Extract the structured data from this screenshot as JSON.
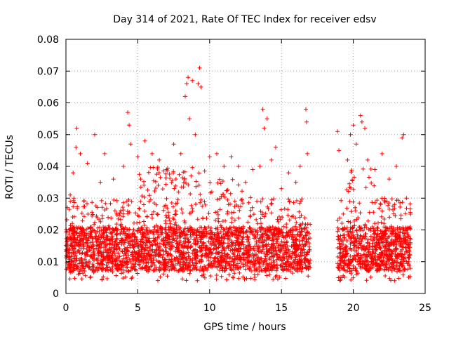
{
  "chart_data": {
    "type": "scatter",
    "title": "Day 314 of 2021, Rate Of TEC Index for receiver edsv",
    "xlabel": "GPS time / hours",
    "ylabel": "ROTI / TECUs",
    "xlim": [
      0,
      25
    ],
    "ylim": [
      0,
      0.08
    ],
    "xticks": [
      "0",
      "5",
      "10",
      "15",
      "20",
      "25"
    ],
    "yticks": [
      "0",
      "0.01",
      "0.02",
      "0.03",
      "0.04",
      "0.05",
      "0.06",
      "0.07",
      "0.08"
    ],
    "grid": true,
    "marker": "+",
    "color": "#ff0000",
    "data_gap_hours": [
      17.0,
      18.9
    ],
    "series": [
      {
        "name": "ROTI",
        "points": [
          [
            0.1,
            0.027
          ],
          [
            0.3,
            0.031
          ],
          [
            0.5,
            0.038
          ],
          [
            0.7,
            0.046
          ],
          [
            0.75,
            0.052
          ],
          [
            1.0,
            0.044
          ],
          [
            1.5,
            0.041
          ],
          [
            2.0,
            0.05
          ],
          [
            2.4,
            0.035
          ],
          [
            2.7,
            0.044
          ],
          [
            3.3,
            0.036
          ],
          [
            4.0,
            0.04
          ],
          [
            4.3,
            0.057
          ],
          [
            4.4,
            0.053
          ],
          [
            4.5,
            0.047
          ],
          [
            5.0,
            0.043
          ],
          [
            5.2,
            0.036
          ],
          [
            5.5,
            0.048
          ],
          [
            6.0,
            0.044
          ],
          [
            6.5,
            0.042
          ],
          [
            7.0,
            0.039
          ],
          [
            7.5,
            0.047
          ],
          [
            8.0,
            0.044
          ],
          [
            8.3,
            0.062
          ],
          [
            8.4,
            0.066
          ],
          [
            8.5,
            0.068
          ],
          [
            8.6,
            0.055
          ],
          [
            8.8,
            0.067
          ],
          [
            9.0,
            0.05
          ],
          [
            9.2,
            0.066
          ],
          [
            9.3,
            0.071
          ],
          [
            9.4,
            0.065
          ],
          [
            10.0,
            0.043
          ],
          [
            10.5,
            0.044
          ],
          [
            11.0,
            0.04
          ],
          [
            11.5,
            0.043
          ],
          [
            12.0,
            0.04
          ],
          [
            12.5,
            0.035
          ],
          [
            13.0,
            0.039
          ],
          [
            13.5,
            0.04
          ],
          [
            13.7,
            0.058
          ],
          [
            13.8,
            0.052
          ],
          [
            14.0,
            0.055
          ],
          [
            14.3,
            0.042
          ],
          [
            14.6,
            0.046
          ],
          [
            15.0,
            0.033
          ],
          [
            15.5,
            0.038
          ],
          [
            16.0,
            0.035
          ],
          [
            16.3,
            0.04
          ],
          [
            16.7,
            0.058
          ],
          [
            16.75,
            0.054
          ],
          [
            16.8,
            0.044
          ],
          [
            18.9,
            0.051
          ],
          [
            19.0,
            0.045
          ],
          [
            19.3,
            0.025
          ],
          [
            19.6,
            0.042
          ],
          [
            19.8,
            0.05
          ],
          [
            20.0,
            0.053
          ],
          [
            20.2,
            0.047
          ],
          [
            20.5,
            0.056
          ],
          [
            20.6,
            0.054
          ],
          [
            20.8,
            0.052
          ],
          [
            21.0,
            0.042
          ],
          [
            21.5,
            0.039
          ],
          [
            22.0,
            0.044
          ],
          [
            22.5,
            0.036
          ],
          [
            23.0,
            0.04
          ],
          [
            23.4,
            0.049
          ],
          [
            23.5,
            0.05
          ],
          [
            23.7,
            0.03
          ]
        ]
      }
    ]
  }
}
